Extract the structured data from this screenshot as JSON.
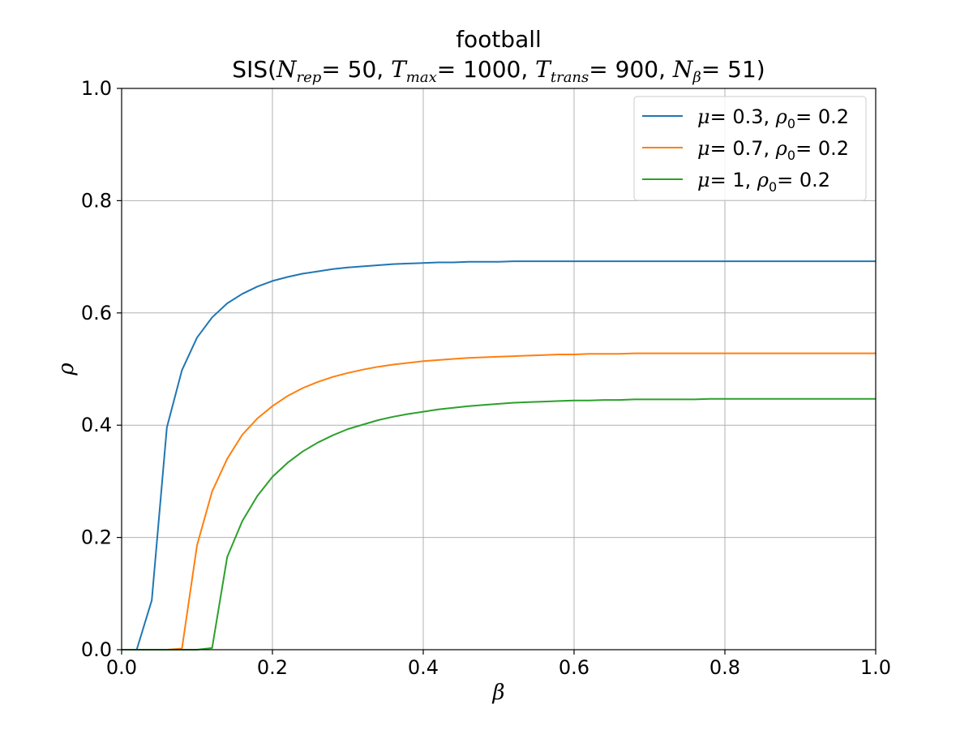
{
  "chart_data": {
    "type": "line",
    "title": "football",
    "subtitle_parts": {
      "prefix": "SIS(",
      "n_rep_label": "N",
      "n_rep_sub": "rep",
      "n_rep_value": "= 50, ",
      "t_max_label": "T",
      "t_max_sub": "max",
      "t_max_value": "= 1000, ",
      "t_trans_label": "T",
      "t_trans_sub": "trans",
      "t_trans_value": "= 900, ",
      "n_beta_label": "N",
      "n_beta_sub": "β",
      "n_beta_value": "= 51)"
    },
    "xlabel": "β",
    "ylabel": "ρ",
    "xlim": [
      0.0,
      1.0
    ],
    "ylim": [
      0.0,
      1.0
    ],
    "xticks": [
      "0.0",
      "0.2",
      "0.4",
      "0.6",
      "0.8",
      "1.0"
    ],
    "yticks": [
      "0.0",
      "0.2",
      "0.4",
      "0.6",
      "0.8",
      "1.0"
    ],
    "grid": true,
    "legend_position": "top-right",
    "x": [
      0.0,
      0.02,
      0.04,
      0.06,
      0.08,
      0.1,
      0.12,
      0.14,
      0.16,
      0.18,
      0.2,
      0.22,
      0.24,
      0.26,
      0.28,
      0.3,
      0.32,
      0.34,
      0.36,
      0.38,
      0.4,
      0.42,
      0.44,
      0.46,
      0.48,
      0.5,
      0.52,
      0.54,
      0.56,
      0.58,
      0.6,
      0.62,
      0.64,
      0.66,
      0.68,
      0.7,
      0.72,
      0.74,
      0.76,
      0.78,
      0.8,
      0.82,
      0.84,
      0.86,
      0.88,
      0.9,
      0.92,
      0.94,
      0.96,
      0.98,
      1.0
    ],
    "series": [
      {
        "mu": "0.3",
        "rho0": "0.2",
        "color": "#1f77b4",
        "values": [
          0.0,
          0.0,
          0.088,
          0.396,
          0.498,
          0.556,
          0.592,
          0.617,
          0.634,
          0.647,
          0.657,
          0.664,
          0.67,
          0.674,
          0.678,
          0.681,
          0.683,
          0.685,
          0.687,
          0.688,
          0.689,
          0.69,
          0.69,
          0.691,
          0.691,
          0.691,
          0.692,
          0.692,
          0.692,
          0.692,
          0.692,
          0.692,
          0.692,
          0.692,
          0.692,
          0.692,
          0.692,
          0.692,
          0.692,
          0.692,
          0.692,
          0.692,
          0.692,
          0.692,
          0.692,
          0.692,
          0.692,
          0.692,
          0.692,
          0.692,
          0.692
        ]
      },
      {
        "mu": "0.7",
        "rho0": "0.2",
        "color": "#ff7f0e",
        "values": [
          0.0,
          0.0,
          0.0,
          0.0,
          0.002,
          0.186,
          0.282,
          0.34,
          0.383,
          0.412,
          0.434,
          0.452,
          0.466,
          0.477,
          0.486,
          0.493,
          0.499,
          0.504,
          0.508,
          0.511,
          0.514,
          0.516,
          0.518,
          0.52,
          0.521,
          0.522,
          0.523,
          0.524,
          0.525,
          0.526,
          0.526,
          0.527,
          0.527,
          0.527,
          0.528,
          0.528,
          0.528,
          0.528,
          0.528,
          0.528,
          0.528,
          0.528,
          0.528,
          0.528,
          0.528,
          0.528,
          0.528,
          0.528,
          0.528,
          0.528,
          0.528
        ]
      },
      {
        "mu": "1",
        "rho0": "0.2",
        "color": "#2ca02c",
        "values": [
          0.0,
          0.0,
          0.0,
          0.0,
          0.0,
          0.0,
          0.003,
          0.165,
          0.229,
          0.274,
          0.308,
          0.333,
          0.353,
          0.369,
          0.382,
          0.393,
          0.401,
          0.409,
          0.415,
          0.42,
          0.424,
          0.428,
          0.431,
          0.434,
          0.436,
          0.438,
          0.44,
          0.441,
          0.442,
          0.443,
          0.444,
          0.444,
          0.445,
          0.445,
          0.446,
          0.446,
          0.446,
          0.446,
          0.446,
          0.447,
          0.447,
          0.447,
          0.447,
          0.447,
          0.447,
          0.447,
          0.447,
          0.447,
          0.447,
          0.447,
          0.447
        ]
      }
    ],
    "legend_labels": {
      "mu_symbol": "μ",
      "rho_symbol": "ρ",
      "rho_sub": "0",
      "eq": "= ",
      "sep": ", "
    }
  }
}
